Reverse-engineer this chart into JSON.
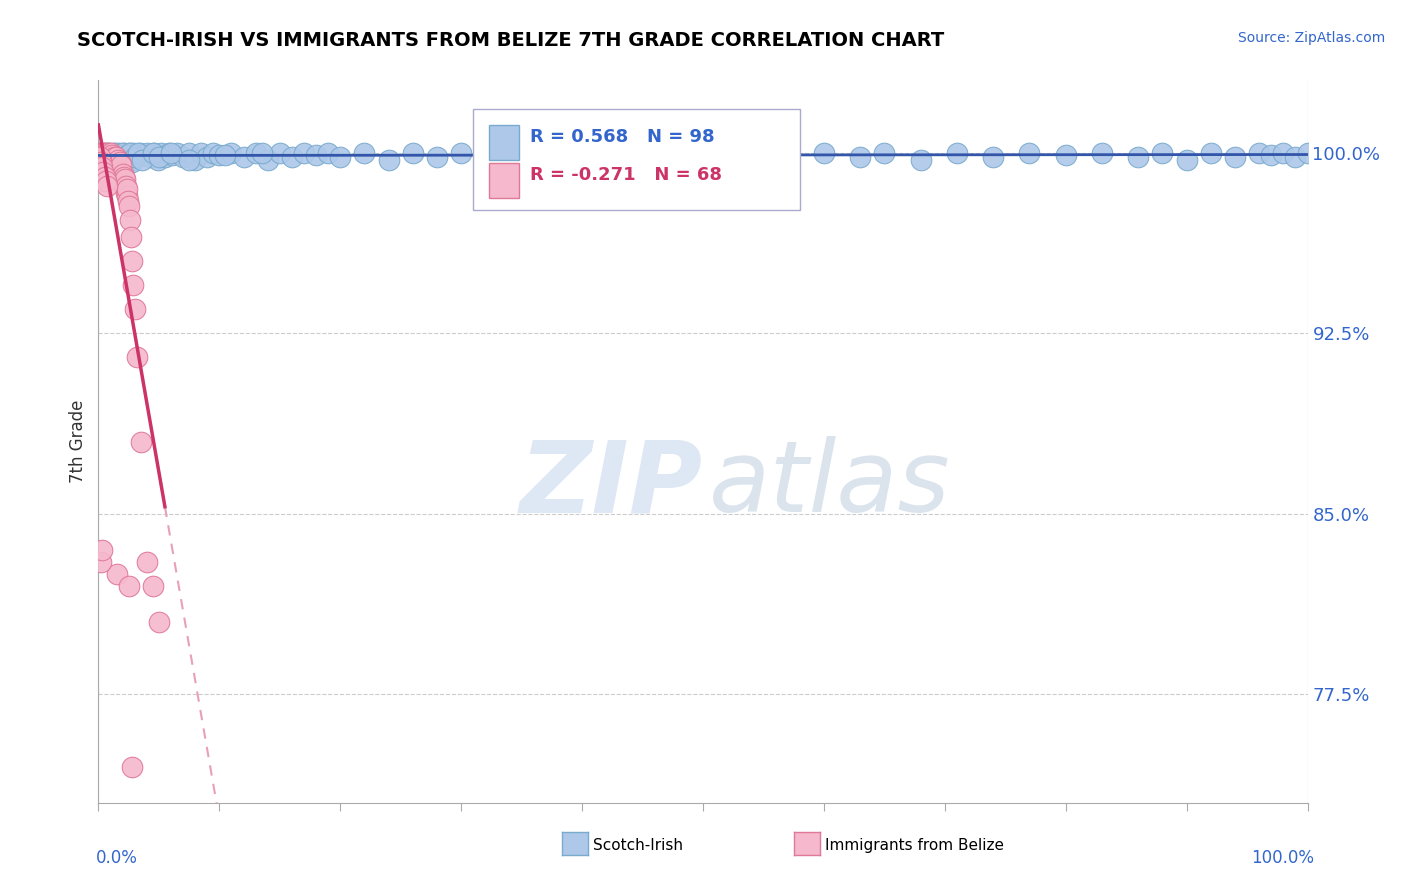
{
  "title": "SCOTCH-IRISH VS IMMIGRANTS FROM BELIZE 7TH GRADE CORRELATION CHART",
  "source": "Source: ZipAtlas.com",
  "ylabel": "7th Grade",
  "yticks": [
    77.5,
    85.0,
    92.5,
    100.0
  ],
  "ytick_labels": [
    "77.5%",
    "85.0%",
    "92.5%",
    "100.0%"
  ],
  "xmin": 0.0,
  "xmax": 100.0,
  "ymin": 73.0,
  "ymax": 103.0,
  "blue_R": 0.568,
  "blue_N": 98,
  "pink_R": -0.271,
  "pink_N": 68,
  "blue_color": "#adc8e8",
  "blue_edge": "#7aaace",
  "pink_color": "#f5b8cc",
  "pink_edge": "#e07898",
  "blue_line_color": "#3355aa",
  "pink_line_color": "#cc3366",
  "pink_line_dashed_color": "#e8a0b8",
  "legend_blue_label": "Scotch-Irish",
  "legend_pink_label": "Immigrants from Belize",
  "blue_x": [
    0.3,
    0.5,
    0.7,
    0.9,
    1.1,
    1.3,
    1.5,
    1.7,
    1.9,
    2.1,
    2.3,
    2.5,
    2.7,
    2.9,
    3.1,
    3.4,
    3.7,
    4.0,
    4.3,
    4.6,
    4.9,
    5.2,
    5.5,
    5.8,
    6.1,
    6.5,
    7.0,
    7.5,
    8.0,
    8.5,
    9.0,
    9.5,
    10.0,
    11.0,
    12.0,
    13.0,
    14.0,
    15.0,
    16.0,
    17.0,
    18.0,
    19.0,
    20.0,
    22.0,
    24.0,
    26.0,
    28.0,
    30.0,
    33.0,
    36.0,
    39.0,
    42.0,
    45.0,
    48.0,
    51.0,
    54.0,
    57.0,
    60.0,
    63.0,
    65.0,
    68.0,
    71.0,
    74.0,
    77.0,
    80.0,
    83.0,
    86.0,
    88.0,
    90.0,
    92.0,
    94.0,
    96.0,
    97.0,
    98.0,
    99.0,
    100.0,
    0.4,
    0.6,
    0.8,
    1.0,
    1.2,
    1.4,
    1.6,
    1.8,
    2.0,
    2.2,
    2.4,
    2.6,
    2.8,
    3.0,
    3.3,
    3.6,
    4.5,
    5.0,
    6.0,
    7.5,
    10.5,
    13.5
  ],
  "blue_y": [
    99.8,
    100.0,
    99.9,
    100.0,
    99.8,
    100.0,
    99.7,
    100.0,
    99.9,
    100.0,
    99.8,
    100.0,
    99.7,
    100.0,
    99.8,
    100.0,
    99.9,
    100.0,
    99.8,
    100.0,
    99.7,
    100.0,
    99.8,
    100.0,
    99.9,
    100.0,
    99.8,
    100.0,
    99.7,
    100.0,
    99.8,
    100.0,
    99.9,
    100.0,
    99.8,
    100.0,
    99.7,
    100.0,
    99.8,
    100.0,
    99.9,
    100.0,
    99.8,
    100.0,
    99.7,
    100.0,
    99.8,
    100.0,
    99.9,
    100.0,
    99.8,
    100.0,
    99.7,
    100.0,
    99.8,
    100.0,
    99.9,
    100.0,
    99.8,
    100.0,
    99.7,
    100.0,
    99.8,
    100.0,
    99.9,
    100.0,
    99.8,
    100.0,
    99.7,
    100.0,
    99.8,
    100.0,
    99.9,
    100.0,
    99.8,
    100.0,
    99.6,
    99.8,
    100.0,
    99.7,
    99.9,
    100.0,
    99.6,
    99.8,
    100.0,
    99.7,
    99.9,
    100.0,
    99.6,
    99.8,
    100.0,
    99.7,
    100.0,
    99.8,
    100.0,
    99.7,
    99.9,
    100.0
  ],
  "pink_x": [
    0.05,
    0.1,
    0.15,
    0.2,
    0.25,
    0.3,
    0.35,
    0.4,
    0.45,
    0.5,
    0.55,
    0.6,
    0.65,
    0.7,
    0.75,
    0.8,
    0.85,
    0.9,
    0.95,
    1.0,
    1.05,
    1.1,
    1.15,
    1.2,
    1.25,
    1.3,
    1.35,
    1.4,
    1.45,
    1.5,
    1.55,
    1.6,
    1.65,
    1.7,
    1.75,
    1.8,
    1.85,
    1.9,
    1.95,
    2.0,
    2.05,
    2.1,
    2.15,
    2.2,
    2.25,
    2.3,
    2.35,
    2.4,
    2.45,
    2.5,
    2.6,
    2.7,
    2.8,
    2.9,
    3.0,
    3.2,
    3.5,
    4.0,
    4.5,
    5.0,
    0.12,
    0.22,
    0.32,
    0.42,
    0.52,
    0.62,
    0.72
  ],
  "pink_y": [
    100.0,
    99.9,
    100.0,
    99.8,
    100.0,
    99.7,
    100.0,
    99.6,
    99.9,
    100.0,
    99.5,
    99.8,
    100.0,
    99.4,
    99.7,
    100.0,
    99.3,
    99.6,
    99.9,
    100.0,
    99.4,
    99.7,
    99.9,
    99.3,
    99.6,
    99.8,
    99.2,
    99.5,
    99.8,
    99.1,
    99.4,
    99.7,
    99.0,
    99.3,
    99.6,
    98.9,
    99.2,
    99.5,
    98.8,
    99.1,
    98.7,
    99.0,
    98.6,
    98.9,
    98.3,
    98.6,
    98.2,
    98.5,
    98.0,
    97.8,
    97.2,
    96.5,
    95.5,
    94.5,
    93.5,
    91.5,
    88.0,
    83.0,
    82.0,
    80.5,
    99.8,
    99.6,
    99.4,
    99.2,
    99.0,
    98.8,
    98.6
  ],
  "pink_extra_x": [
    1.5,
    2.5,
    2.8,
    0.2,
    0.3
  ],
  "pink_extra_y": [
    82.5,
    82.0,
    74.5,
    83.0,
    83.5
  ]
}
